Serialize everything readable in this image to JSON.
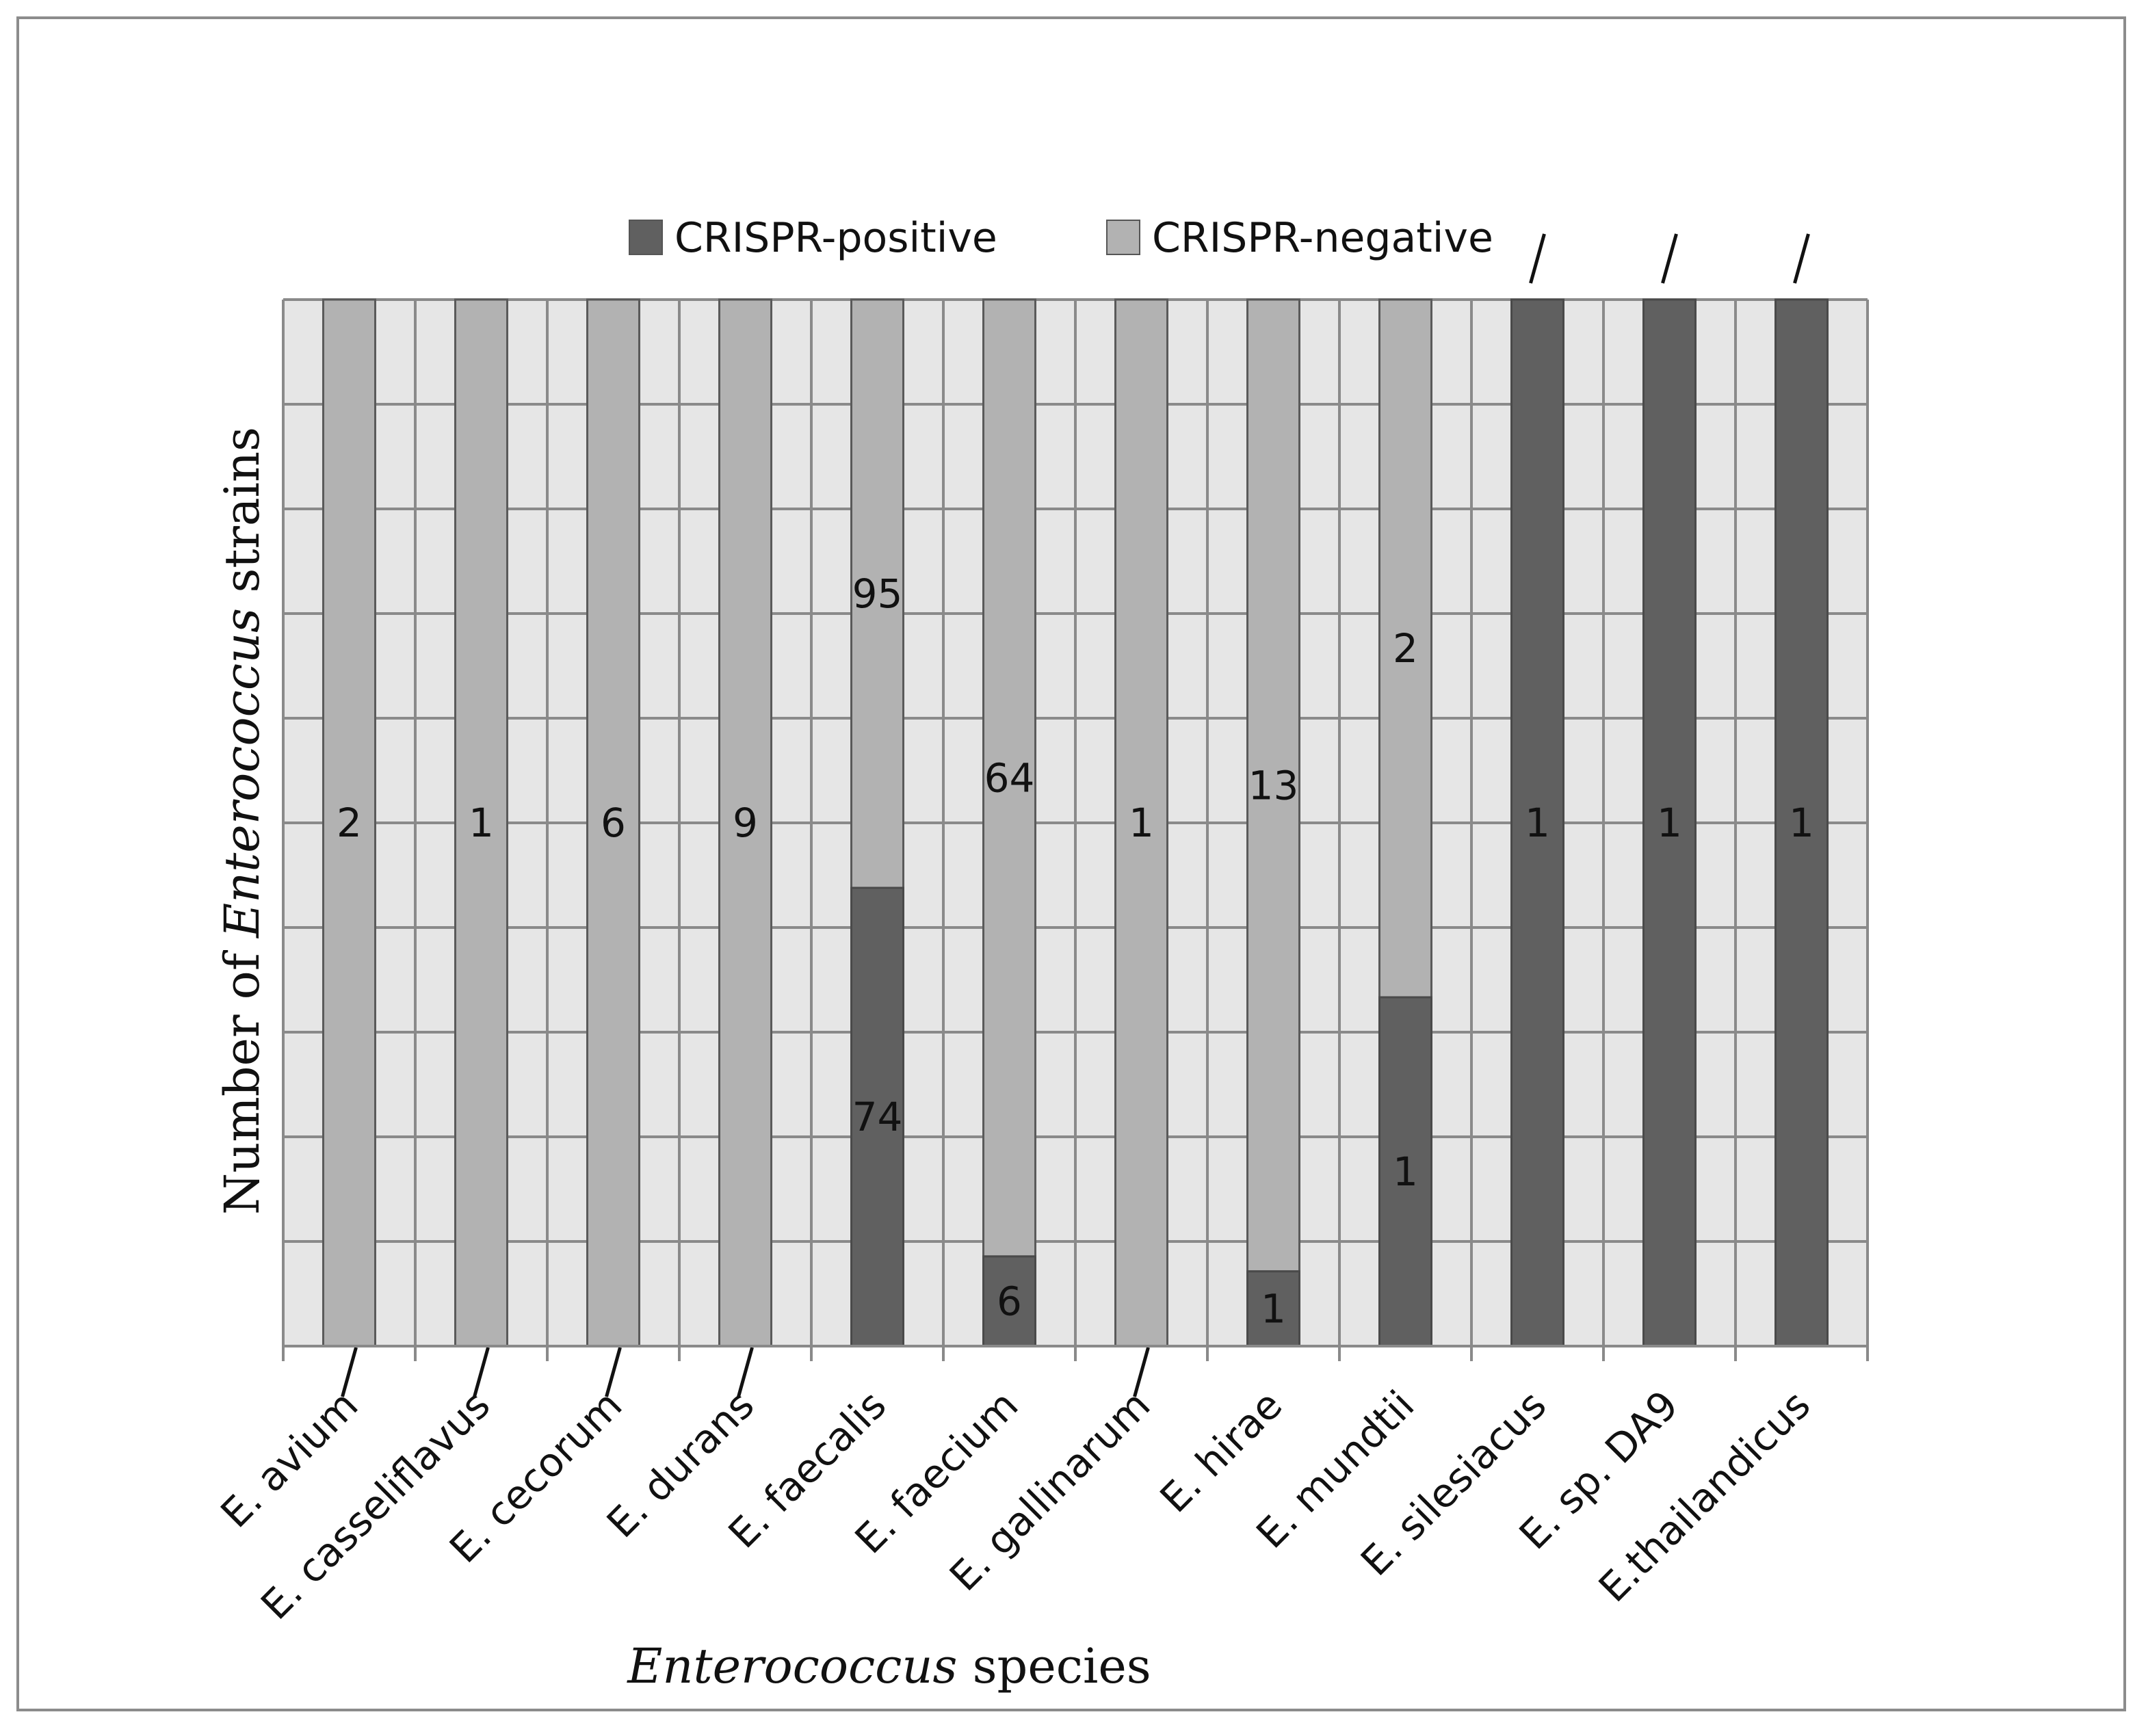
{
  "chart_data": {
    "type": "bar",
    "stacked": true,
    "normalized": true,
    "title": "",
    "xlabel_parts": [
      {
        "text": "Enterococcus",
        "italic": true
      },
      {
        "text": " species",
        "italic": false
      }
    ],
    "ylabel_parts": [
      {
        "text": "Number of ",
        "italic": false
      },
      {
        "text": "Enterococcus",
        "italic": true
      },
      {
        "text": " strains",
        "italic": false
      }
    ],
    "categories": [
      "E. avium",
      "E. casseliflavus",
      "E. cecorum",
      "E. durans",
      "E. faecalis",
      "E. faecium",
      "E. gallinarum",
      "E. hirae",
      "E. mundtii",
      "E. silesiacus",
      "E. sp. DA9",
      "E.thailandicus"
    ],
    "series": [
      {
        "name": "CRISPR-positive",
        "color": "#606060",
        "values": [
          0,
          0,
          0,
          0,
          74,
          6,
          0,
          1,
          1,
          1,
          1,
          1
        ]
      },
      {
        "name": "CRISPR-negative",
        "color": "#b2b2b2",
        "values": [
          2,
          1,
          6,
          9,
          95,
          64,
          1,
          13,
          2,
          0,
          0,
          0
        ]
      }
    ],
    "data_labels": {
      "positive": [
        "/",
        "/",
        "/",
        "/",
        "74",
        "6",
        "/",
        "1",
        "1",
        "1",
        "1",
        "1"
      ],
      "negative": [
        "2",
        "1",
        "6",
        "9",
        "95",
        "64",
        "1",
        "13",
        "2",
        "/",
        "/",
        "/"
      ]
    },
    "ylim": [
      0,
      1
    ],
    "y_gridlines": 10,
    "grid": true,
    "legend": "top-center",
    "plot_background": "#e6e6e6",
    "grid_color": "#8a8a8a"
  }
}
